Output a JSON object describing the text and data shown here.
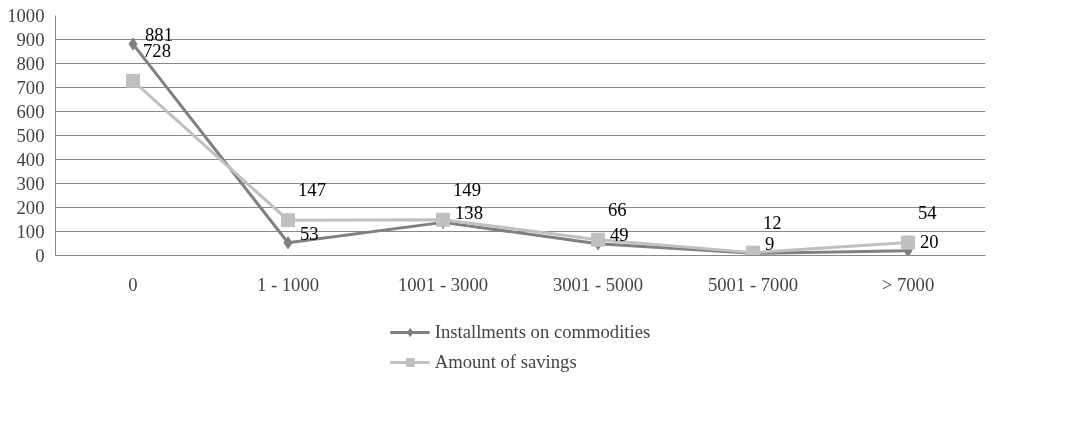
{
  "chart_data": {
    "type": "line",
    "categories": [
      "0",
      "1 - 1000",
      "1001 - 3000",
      "3001 - 5000",
      "5001 - 7000",
      "> 7000"
    ],
    "series": [
      {
        "name": "Installments on commodities",
        "color": "#808080",
        "marker": "diamond",
        "values": [
          881,
          53,
          138,
          49,
          9,
          20
        ]
      },
      {
        "name": "Amount of savings",
        "color": "#c0c0c0",
        "marker": "square",
        "values": [
          728,
          147,
          149,
          66,
          12,
          54
        ]
      }
    ],
    "ylim": [
      0,
      1000
    ],
    "yticks": [
      0,
      100,
      200,
      300,
      400,
      500,
      600,
      700,
      800,
      900,
      1000
    ],
    "grid": "y",
    "legend": "bottom",
    "data_labels": true,
    "line_style": "solid"
  }
}
